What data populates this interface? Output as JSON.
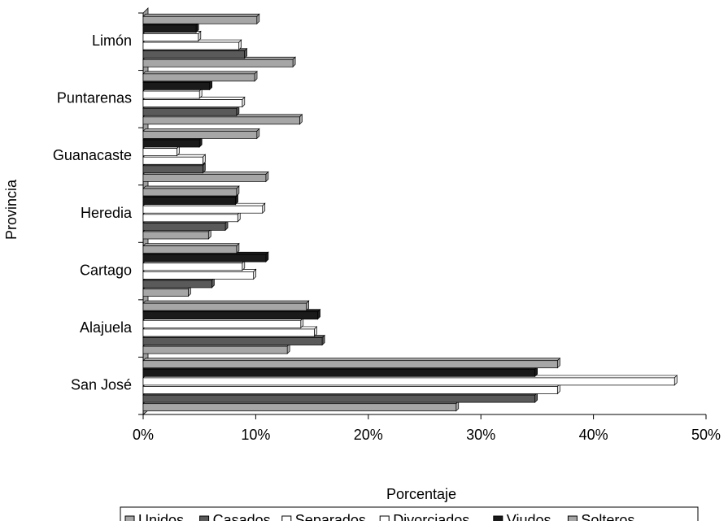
{
  "chart_data": {
    "type": "hbar",
    "x_label": "Porcentaje",
    "y_label": "Provincia",
    "categories": [
      "San José",
      "Alajuela",
      "Cartago",
      "Heredia",
      "Guanacaste",
      "Puntarenas",
      "Limón"
    ],
    "series": [
      {
        "name": "Unidos",
        "color": "#a6a6a6",
        "values": [
          27.8,
          12.8,
          4.0,
          5.8,
          10.9,
          13.9,
          13.3
        ]
      },
      {
        "name": "Casados",
        "color": "#5a5a5a",
        "values": [
          34.8,
          15.9,
          6.1,
          7.3,
          5.3,
          8.3,
          9.0
        ]
      },
      {
        "name": "Separados",
        "color": "#ffffff",
        "values": [
          36.8,
          15.2,
          9.8,
          8.4,
          5.3,
          8.8,
          8.5
        ]
      },
      {
        "name": "Divorciados",
        "color": "#ffffff",
        "values": [
          47.2,
          14.0,
          8.8,
          10.6,
          3.0,
          5.0,
          4.9
        ]
      },
      {
        "name": "Viudos",
        "color": "#1a1a1a",
        "values": [
          34.8,
          15.5,
          10.9,
          8.2,
          5.0,
          5.9,
          4.7
        ]
      },
      {
        "name": "Solteros",
        "color": "#a6a6a6",
        "values": [
          36.8,
          14.5,
          8.3,
          8.3,
          10.1,
          9.9,
          10.1
        ]
      }
    ],
    "xlim": [
      0,
      50
    ],
    "xticks": [
      {
        "value": 0,
        "label": "0%"
      },
      {
        "value": 10,
        "label": "10%"
      },
      {
        "value": 20,
        "label": "20%"
      },
      {
        "value": 30,
        "label": "30%"
      },
      {
        "value": 40,
        "label": "40%"
      },
      {
        "value": 50,
        "label": "50%"
      }
    ],
    "legend": "bottom"
  }
}
